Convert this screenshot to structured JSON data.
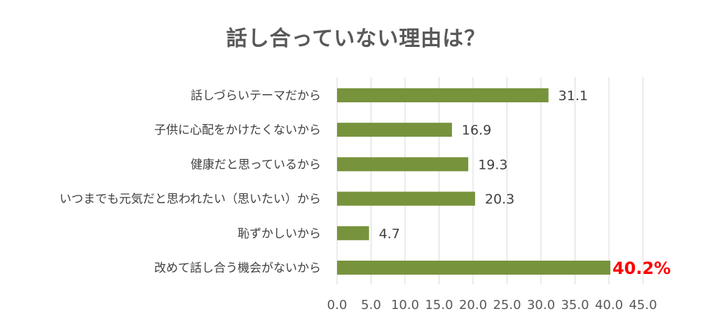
{
  "chart_data": {
    "type": "bar",
    "orientation": "horizontal",
    "title": "話し合っていない理由は？",
    "categories": [
      "話しづらいテーマだから",
      "子供に心配をかけたくないから",
      "健康だと思っているから",
      "いつまでも元気だと思われたい（思いたい）から",
      "恥ずかしいから",
      "改めて話し合う機会がないから"
    ],
    "values": [
      31.1,
      16.9,
      19.3,
      20.3,
      4.7,
      40.2
    ],
    "value_labels": [
      "31.1",
      "16.9",
      "19.3",
      "20.3",
      "4.7",
      "40.2%"
    ],
    "highlight_index": 5,
    "x_ticks": [
      "0.0",
      "5.0",
      "10.0",
      "15.0",
      "20.0",
      "25.0",
      "30.0",
      "35.0",
      "40.0",
      "45.0"
    ],
    "xlim": [
      0,
      45
    ],
    "grid": true,
    "colors": {
      "bar": "#77933c",
      "highlight_text": "#ff0000"
    }
  }
}
